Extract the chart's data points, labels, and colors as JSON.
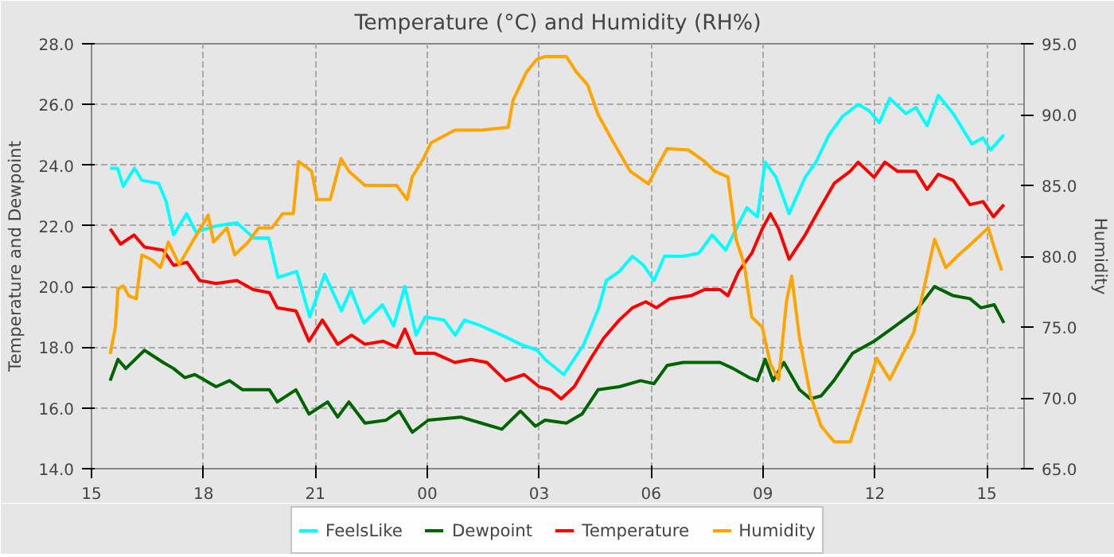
{
  "chart_data": {
    "type": "line",
    "title": "Temperature (°C) and Humidity (RH%)",
    "ylabel": "Temperature and Dewpoint",
    "y2label": "Humidity",
    "xlim": [
      15,
      40
    ],
    "xticks": [
      {
        "value": 15,
        "label": "15"
      },
      {
        "value": 18,
        "label": "18"
      },
      {
        "value": 21,
        "label": "21"
      },
      {
        "value": 24,
        "label": "00"
      },
      {
        "value": 27,
        "label": "03"
      },
      {
        "value": 30,
        "label": "06"
      },
      {
        "value": 33,
        "label": "09"
      },
      {
        "value": 36,
        "label": "12"
      },
      {
        "value": 39,
        "label": "15"
      }
    ],
    "ylim": [
      14,
      28
    ],
    "yticks": [
      {
        "value": 14,
        "label": "14.0"
      },
      {
        "value": 16,
        "label": "16.0"
      },
      {
        "value": 18,
        "label": "18.0"
      },
      {
        "value": 20,
        "label": "20.0"
      },
      {
        "value": 22,
        "label": "22.0"
      },
      {
        "value": 24,
        "label": "24.0"
      },
      {
        "value": 26,
        "label": "26.0"
      },
      {
        "value": 28,
        "label": "28.0"
      }
    ],
    "y2lim": [
      65,
      95
    ],
    "y2ticks": [
      {
        "value": 65,
        "label": "65.0"
      },
      {
        "value": 70,
        "label": "70.0"
      },
      {
        "value": 75,
        "label": "75.0"
      },
      {
        "value": 80,
        "label": "80.0"
      },
      {
        "value": 85,
        "label": "85.0"
      },
      {
        "value": 90,
        "label": "90.0"
      },
      {
        "value": 95,
        "label": "95.0"
      }
    ],
    "grid": true,
    "legend": "bottom",
    "marker": "none",
    "line_style": "solid",
    "series": [
      {
        "name": "FeelsLike",
        "color": "#00ffff",
        "x": [
          15.5,
          15.7,
          15.85,
          16.15,
          16.35,
          16.8,
          17.0,
          17.2,
          17.55,
          17.8,
          18.35,
          18.9,
          19.35,
          19.75,
          20.0,
          20.5,
          20.85,
          21.25,
          21.7,
          21.95,
          22.3,
          22.8,
          23.1,
          23.4,
          23.7,
          23.95,
          24.45,
          24.75,
          25.0,
          25.45,
          26.0,
          26.5,
          26.95,
          27.16,
          27.66,
          28.2,
          28.6,
          28.8,
          29.15,
          29.5,
          29.8,
          30.08,
          30.36,
          30.86,
          31.28,
          31.64,
          32.0,
          32.2,
          32.57,
          32.85,
          33.06,
          33.35,
          33.7,
          34.13,
          34.42,
          34.77,
          35.13,
          35.55,
          35.84,
          36.12,
          36.4,
          36.83,
          37.1,
          37.4,
          37.7,
          38.1,
          38.6,
          38.9,
          39.1,
          39.46
        ],
        "values": [
          23.9,
          23.9,
          23.3,
          23.9,
          23.5,
          23.4,
          22.8,
          21.7,
          22.4,
          21.8,
          22.0,
          22.1,
          21.6,
          21.6,
          20.3,
          20.5,
          19.0,
          20.4,
          19.2,
          19.9,
          18.8,
          19.4,
          18.7,
          20.0,
          18.4,
          19.0,
          18.9,
          18.4,
          18.9,
          18.7,
          18.4,
          18.1,
          17.9,
          17.6,
          17.1,
          18.1,
          19.3,
          20.2,
          20.5,
          21.0,
          20.7,
          20.2,
          21.0,
          21.0,
          21.1,
          21.7,
          21.2,
          21.7,
          22.6,
          22.3,
          24.1,
          23.6,
          22.4,
          23.6,
          24.1,
          25.0,
          25.6,
          26.0,
          25.8,
          25.4,
          26.2,
          25.7,
          25.9,
          25.3,
          26.3,
          25.7,
          24.7,
          24.9,
          24.5,
          25.0
        ]
      },
      {
        "name": "Dewpoint",
        "color": "#006400",
        "x": [
          15.5,
          15.71,
          15.92,
          16.42,
          16.92,
          17.2,
          17.5,
          17.77,
          18.06,
          18.34,
          18.7,
          19.05,
          19.77,
          19.98,
          20.48,
          20.83,
          21.33,
          21.6,
          21.9,
          22.33,
          22.9,
          23.25,
          23.6,
          24.03,
          24.9,
          25.45,
          26.0,
          26.5,
          26.9,
          27.16,
          27.73,
          28.15,
          28.58,
          29.15,
          29.72,
          30.08,
          30.43,
          30.86,
          31.43,
          31.85,
          32.2,
          32.63,
          32.85,
          33.06,
          33.27,
          33.56,
          33.98,
          34.27,
          34.56,
          34.9,
          35.4,
          35.98,
          36.55,
          37.1,
          37.6,
          38.1,
          38.55,
          38.84,
          39.2,
          39.46
        ],
        "values": [
          16.9,
          17.6,
          17.3,
          17.9,
          17.5,
          17.3,
          17.0,
          17.1,
          16.9,
          16.7,
          16.9,
          16.6,
          16.6,
          16.2,
          16.6,
          15.8,
          16.2,
          15.7,
          16.2,
          15.5,
          15.6,
          15.9,
          15.2,
          15.6,
          15.7,
          15.5,
          15.3,
          15.9,
          15.4,
          15.6,
          15.5,
          15.8,
          16.6,
          16.7,
          16.9,
          16.8,
          17.4,
          17.5,
          17.5,
          17.5,
          17.3,
          17.0,
          16.9,
          17.6,
          16.9,
          17.5,
          16.6,
          16.3,
          16.4,
          16.9,
          17.8,
          18.2,
          18.7,
          19.2,
          20.0,
          19.7,
          19.6,
          19.3,
          19.4,
          18.8
        ]
      },
      {
        "name": "Temperature",
        "color": "#ff0000",
        "x": [
          15.5,
          15.78,
          16.14,
          16.42,
          16.92,
          17.2,
          17.56,
          17.9,
          18.34,
          18.9,
          19.34,
          19.77,
          19.98,
          20.48,
          20.83,
          21.19,
          21.6,
          21.97,
          22.33,
          22.82,
          23.18,
          23.4,
          23.68,
          24.2,
          24.74,
          25.17,
          25.6,
          26.1,
          26.6,
          27.0,
          27.3,
          27.59,
          27.94,
          28.37,
          28.73,
          29.15,
          29.5,
          29.86,
          30.14,
          30.5,
          31.07,
          31.43,
          31.85,
          32.06,
          32.35,
          32.7,
          32.98,
          33.2,
          33.42,
          33.7,
          34.13,
          34.49,
          34.91,
          35.34,
          35.55,
          35.98,
          36.27,
          36.6,
          37.1,
          37.4,
          37.7,
          38.1,
          38.55,
          38.9,
          39.18,
          39.46
        ],
        "values": [
          21.9,
          21.4,
          21.7,
          21.3,
          21.2,
          20.7,
          20.8,
          20.2,
          20.1,
          20.2,
          19.9,
          19.8,
          19.3,
          19.2,
          18.2,
          18.9,
          18.1,
          18.4,
          18.1,
          18.2,
          18.0,
          18.6,
          17.8,
          17.8,
          17.5,
          17.6,
          17.5,
          16.9,
          17.1,
          16.7,
          16.6,
          16.3,
          16.7,
          17.6,
          18.3,
          18.9,
          19.3,
          19.5,
          19.3,
          19.6,
          19.7,
          19.9,
          19.9,
          19.7,
          20.5,
          21.1,
          21.9,
          22.4,
          21.9,
          20.9,
          21.7,
          22.5,
          23.4,
          23.8,
          24.1,
          23.6,
          24.1,
          23.8,
          23.8,
          23.2,
          23.7,
          23.5,
          22.7,
          22.8,
          22.3,
          22.7
        ]
      },
      {
        "name": "Humidity",
        "color": "#ffa500",
        "axis": "y2",
        "x": [
          15.5,
          15.64,
          15.71,
          15.85,
          16.0,
          16.2,
          16.35,
          16.64,
          16.85,
          17.06,
          17.35,
          17.7,
          18.13,
          18.27,
          18.63,
          18.84,
          19.2,
          19.48,
          19.84,
          20.12,
          20.41,
          20.55,
          20.9,
          21.05,
          21.4,
          21.69,
          21.9,
          22.33,
          23.18,
          23.46,
          23.6,
          23.9,
          24.1,
          24.74,
          25.45,
          26.17,
          26.3,
          26.66,
          26.94,
          27.16,
          27.73,
          28.0,
          28.3,
          28.58,
          29.0,
          29.44,
          29.93,
          30.14,
          30.43,
          31.0,
          31.43,
          31.71,
          32.06,
          32.28,
          32.5,
          32.7,
          32.98,
          33.2,
          33.42,
          33.63,
          33.77,
          33.98,
          34.27,
          34.56,
          34.91,
          35.34,
          35.7,
          36.05,
          36.4,
          36.69,
          37.04,
          37.33,
          37.6,
          37.9,
          38.25,
          38.55,
          39.04,
          39.26,
          39.4
        ],
        "values": [
          73.1,
          75.0,
          77.7,
          77.9,
          77.2,
          77.0,
          80.1,
          79.7,
          79.2,
          81.0,
          79.4,
          81.0,
          82.9,
          81.0,
          82.0,
          80.1,
          81.0,
          82.0,
          82.0,
          83.0,
          83.0,
          86.7,
          86.0,
          84.0,
          84.0,
          86.9,
          86.0,
          85.0,
          85.0,
          84.0,
          85.6,
          86.9,
          88.0,
          88.9,
          88.9,
          89.1,
          91.0,
          93.0,
          93.9,
          94.1,
          94.1,
          93.0,
          92.1,
          90.0,
          88.0,
          86.0,
          85.1,
          86.2,
          87.6,
          87.5,
          86.7,
          86.0,
          85.6,
          81.2,
          79.4,
          75.7,
          75.0,
          72.4,
          71.3,
          76.8,
          78.6,
          74.2,
          70.2,
          68.0,
          66.9,
          66.9,
          69.8,
          72.8,
          71.3,
          72.8,
          74.6,
          77.9,
          81.2,
          79.2,
          80.1,
          80.8,
          82.0,
          80.1,
          79.0
        ]
      }
    ]
  }
}
